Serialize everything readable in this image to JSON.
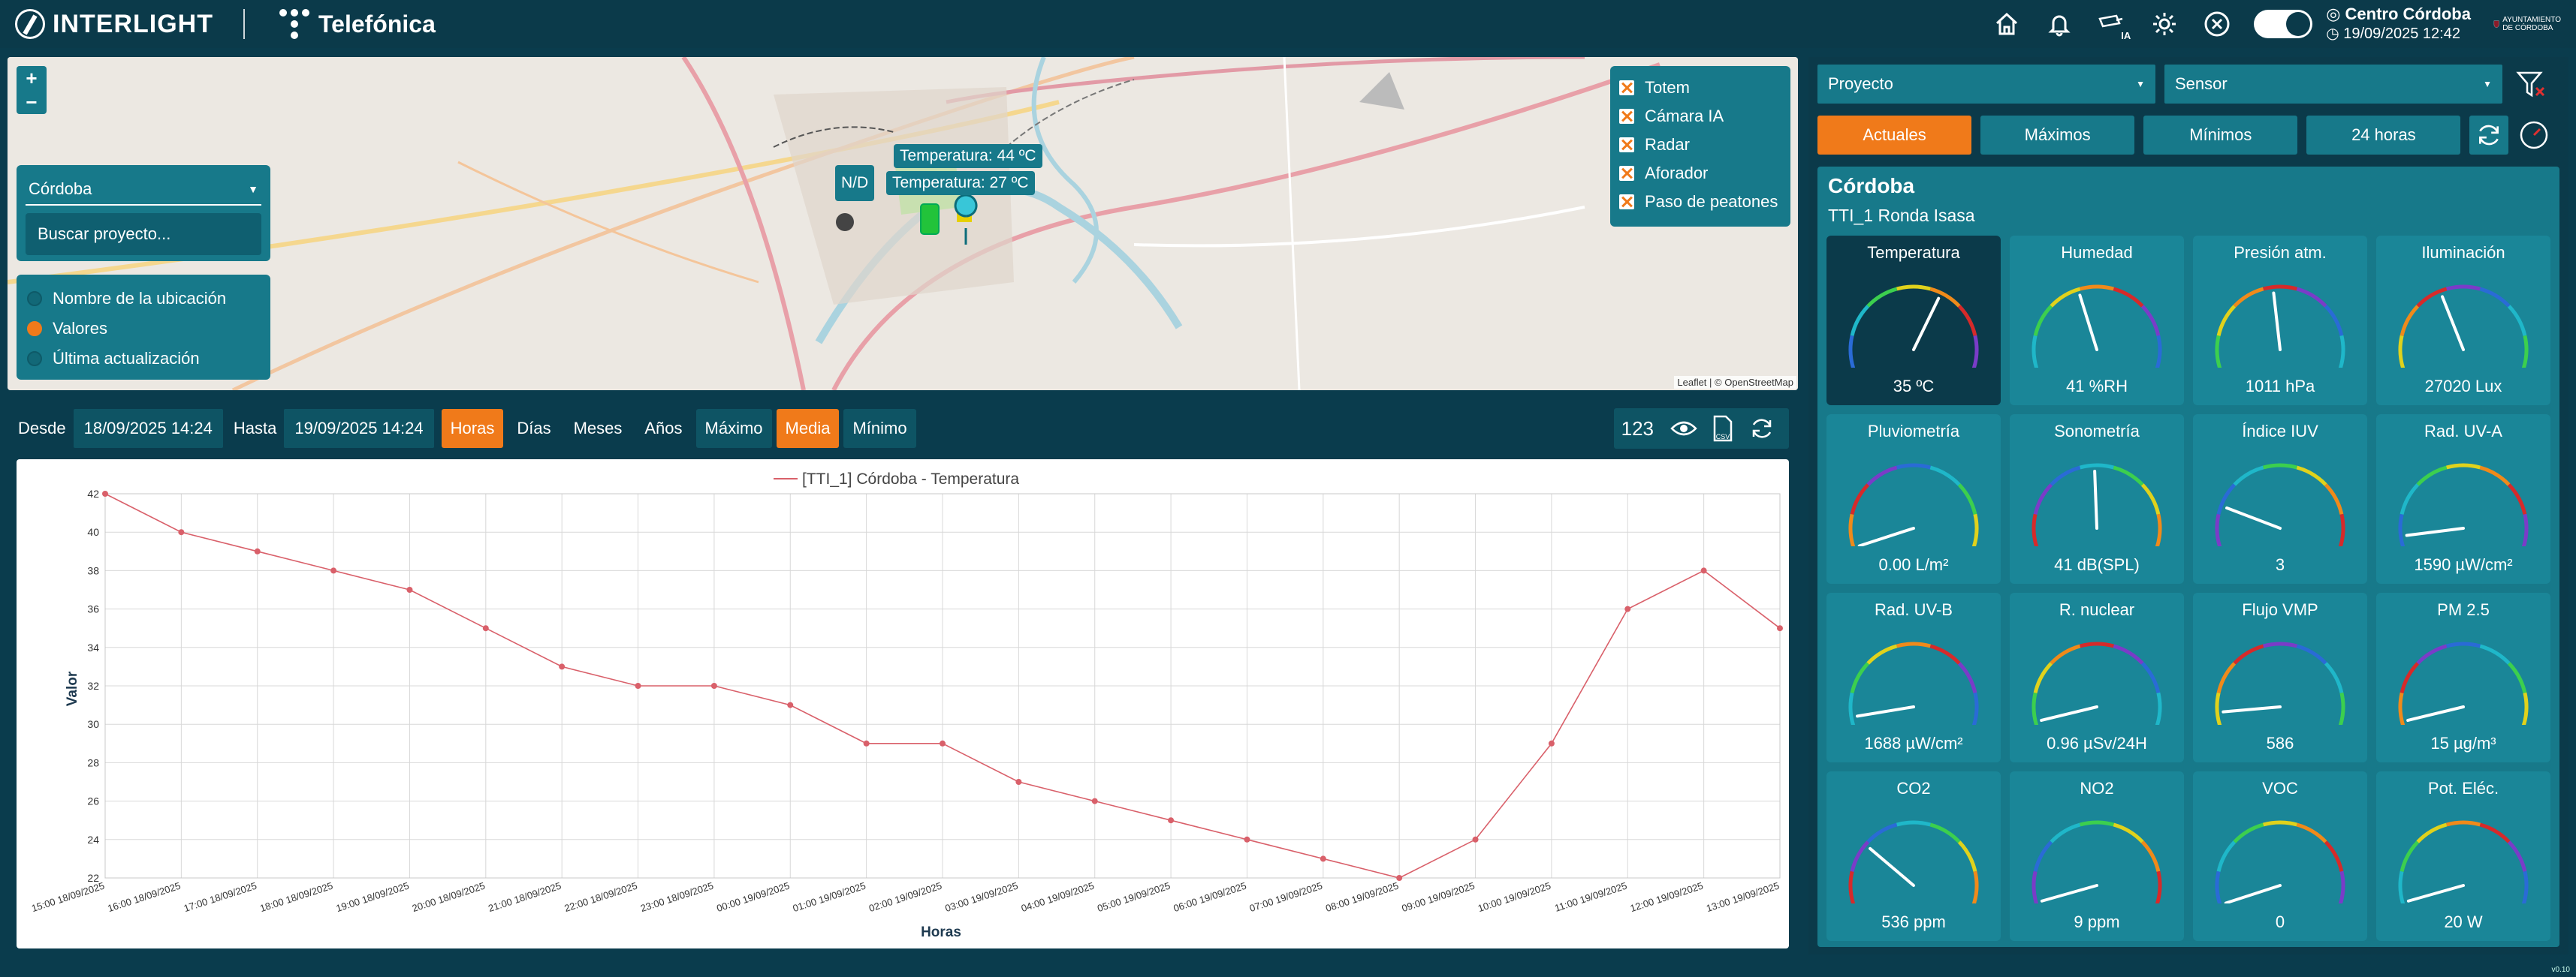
{
  "header": {
    "brand": "INTERLIGHT",
    "partner": "Telefónica",
    "ia_badge": "IA",
    "center_name": "Centro Córdoba",
    "center_date": "19/09/2025 12:42",
    "ayto_line1": "AYUNTAMIENTO",
    "ayto_line2": "DE CÓRDOBA"
  },
  "map": {
    "zoom_in": "+",
    "zoom_out": "−",
    "location_select": "Córdoba",
    "search_placeholder": "Buscar proyecto...",
    "label_options": [
      {
        "label": "Nombre de la ubicación",
        "selected": false
      },
      {
        "label": "Valores",
        "selected": true
      },
      {
        "label": "Última actualización",
        "selected": false
      }
    ],
    "layers": [
      "Totem",
      "Cámara IA",
      "Radar",
      "Aforador",
      "Paso de peatones"
    ],
    "popups": {
      "nd": "N/D",
      "temp1": "Temperatura: 44 ºC",
      "temp2": "Temperatura: 27 ºC"
    },
    "attribution": "Leaflet | © OpenStreetMap"
  },
  "toolbar": {
    "from_label": "Desde",
    "from_value": "18/09/2025 14:24",
    "to_label": "Hasta",
    "to_value": "19/09/2025 14:24",
    "period_buttons": [
      "Horas",
      "Días",
      "Meses",
      "Años"
    ],
    "period_active": "Horas",
    "agg_buttons": [
      "Máximo",
      "Media",
      "Mínimo"
    ],
    "agg_active": "Media",
    "count": "123",
    "csv_label": "CSV"
  },
  "chart_data": {
    "type": "line",
    "title": "",
    "legend": "[TTI_1] Córdoba - Temperatura",
    "legend_position": "top-center",
    "xlabel": "Horas",
    "ylabel": "Valor",
    "ylim": [
      22,
      42
    ],
    "yticks": [
      22,
      24,
      26,
      28,
      30,
      32,
      34,
      36,
      38,
      40,
      42
    ],
    "grid": true,
    "color": "#d9606a",
    "x": [
      "15:00 18/09/2025",
      "16:00 18/09/2025",
      "17:00 18/09/2025",
      "18:00 18/09/2025",
      "19:00 18/09/2025",
      "20:00 18/09/2025",
      "21:00 18/09/2025",
      "22:00 18/09/2025",
      "23:00 18/09/2025",
      "00:00 19/09/2025",
      "01:00 19/09/2025",
      "02:00 19/09/2025",
      "03:00 19/09/2025",
      "04:00 19/09/2025",
      "05:00 19/09/2025",
      "06:00 19/09/2025",
      "07:00 19/09/2025",
      "08:00 19/09/2025",
      "09:00 19/09/2025",
      "10:00 19/09/2025",
      "11:00 19/09/2025",
      "12:00 19/09/2025",
      "13:00 19/09/2025"
    ],
    "values": [
      42,
      40,
      39,
      38,
      37,
      35,
      33,
      32,
      32,
      31,
      29,
      29,
      27,
      26,
      25,
      24,
      23,
      22,
      24,
      29,
      36,
      38,
      35
    ]
  },
  "panel": {
    "project_select": "Proyecto",
    "sensor_select": "Sensor",
    "tabs": [
      "Actuales",
      "Máximos",
      "Mínimos",
      "24 horas"
    ],
    "tab_active": "Actuales",
    "city": "Córdoba",
    "site": "TTI_1 Ronda Isasa",
    "gauges": [
      {
        "title": "Temperatura",
        "value": "35 ºC",
        "level": 0.62,
        "selected": true
      },
      {
        "title": "Humedad",
        "value": "41 %RH",
        "level": 0.42
      },
      {
        "title": "Presión atm.",
        "value": "1011 hPa",
        "level": 0.47
      },
      {
        "title": "Iluminación",
        "value": "27020 Lux",
        "level": 0.4
      },
      {
        "title": "Pluviometría",
        "value": "0.00 L/m²",
        "level": 0.0
      },
      {
        "title": "Sonometría",
        "value": "41 dB(SPL)",
        "level": 0.49
      },
      {
        "title": "Índice IUV",
        "value": "3",
        "level": 0.18
      },
      {
        "title": "Rad. UV-A",
        "value": "1590 µW/cm²",
        "level": 0.05
      },
      {
        "title": "Rad. UV-B",
        "value": "1688 µW/cm²",
        "level": 0.04
      },
      {
        "title": "R. nuclear",
        "value": "0.96 µSv/24H",
        "level": 0.02
      },
      {
        "title": "Flujo VMP",
        "value": "586",
        "level": 0.06
      },
      {
        "title": "PM 2.5",
        "value": "15 µg/m³",
        "level": 0.02
      },
      {
        "title": "CO2",
        "value": "536 ppm",
        "level": 0.27
      },
      {
        "title": "NO2",
        "value": "9 ppm",
        "level": 0.01
      },
      {
        "title": "VOC",
        "value": "0",
        "level": 0.0
      },
      {
        "title": "Pot. Eléc.",
        "value": "20 W",
        "level": 0.01
      }
    ]
  },
  "version": "v0.10",
  "colors": {
    "accent": "#f07a1a",
    "panel": "#17798a",
    "background": "#0b3a4a"
  }
}
